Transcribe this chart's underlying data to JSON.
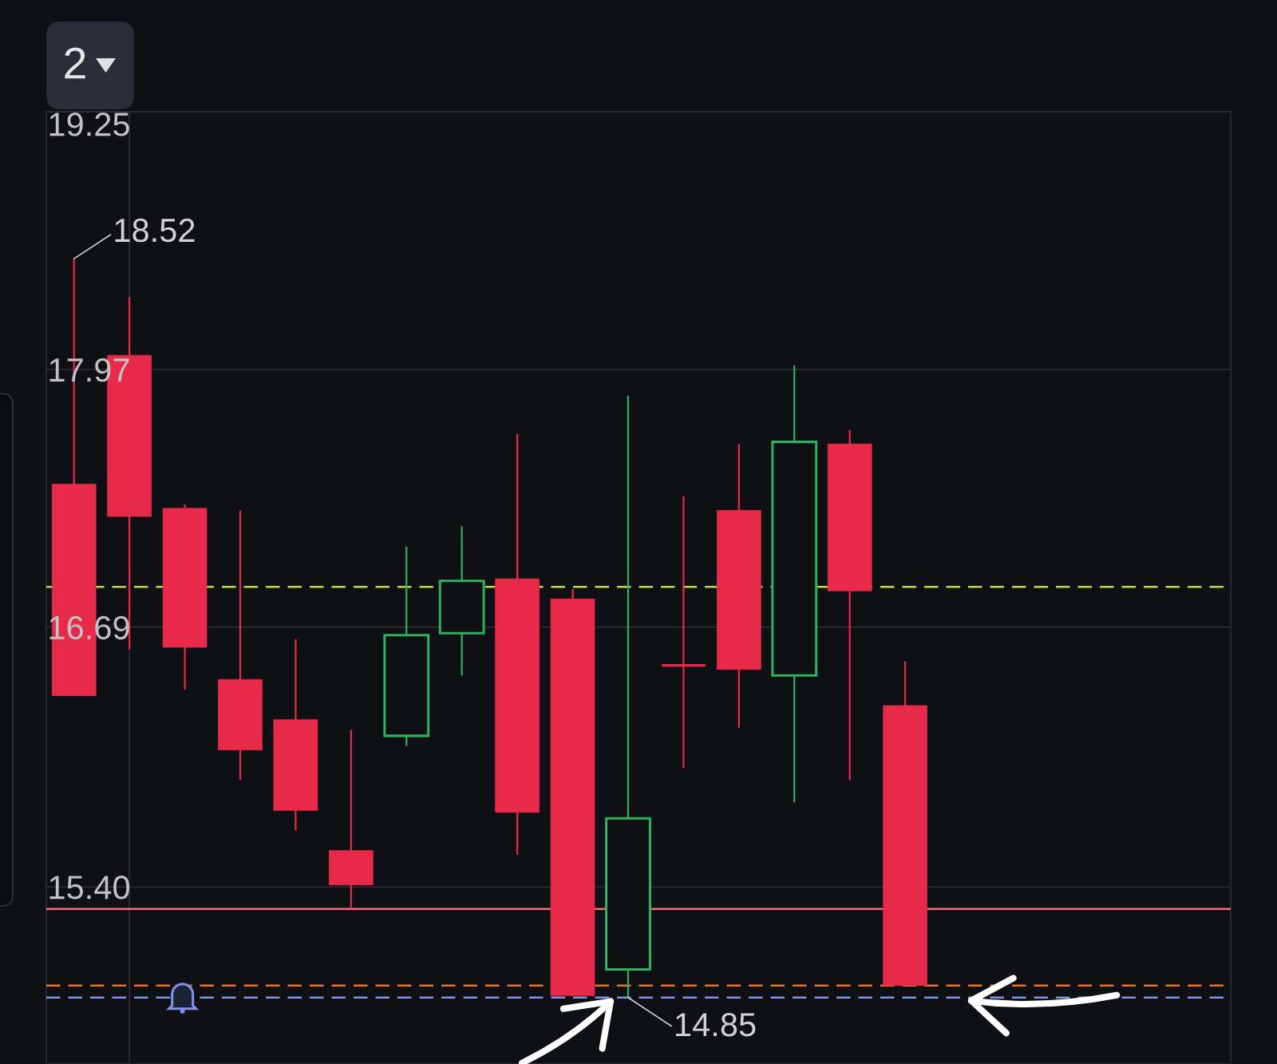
{
  "chart_data": {
    "type": "candlestick",
    "categories": [
      null,
      null,
      null,
      null,
      null,
      null,
      null,
      null,
      null,
      null,
      null,
      null,
      null,
      null,
      null,
      null
    ],
    "ohlc": [
      [
        17.4,
        18.52,
        16.35,
        16.35
      ],
      [
        18.04,
        18.33,
        16.58,
        17.24
      ],
      [
        17.28,
        17.3,
        16.38,
        16.59
      ],
      [
        16.43,
        17.27,
        15.93,
        16.08
      ],
      [
        16.23,
        16.63,
        15.68,
        15.78
      ],
      [
        15.58,
        16.18,
        15.29,
        15.41
      ],
      [
        16.15,
        17.09,
        16.1,
        16.65
      ],
      [
        16.66,
        17.19,
        16.45,
        16.92
      ],
      [
        16.93,
        17.65,
        15.56,
        15.77
      ],
      [
        16.83,
        16.88,
        14.86,
        14.86
      ],
      [
        14.99,
        17.84,
        14.85,
        15.74
      ],
      [
        16.5,
        17.34,
        15.99,
        16.5
      ],
      [
        17.27,
        17.6,
        16.19,
        16.48
      ],
      [
        16.45,
        17.99,
        15.82,
        17.61
      ],
      [
        17.6,
        17.67,
        15.93,
        16.87
      ],
      [
        16.3,
        16.52,
        14.91,
        14.91
      ]
    ],
    "colors": [
      "#e72a49",
      "#e72a49",
      "#e72a49",
      "#e72a49",
      "#e72a49",
      "#e72a49",
      "#33ad5f",
      "#33ad5f",
      "#e72a49",
      "#e72a49",
      "#33ad5f",
      "#e72a49",
      "#e72a49",
      "#33ad5f",
      "#e72a49",
      "#e72a49"
    ],
    "ylim": [
      14.52,
      19.25
    ],
    "yticks": [
      19.25,
      17.97,
      16.69,
      {
        "value": 15.4,
        "label": "15.40"
      }
    ],
    "grid": "y",
    "tick_labels": "y",
    "ref_lines": [
      {
        "axis": "y",
        "value": 16.89,
        "color": "#c3d44a",
        "line_style": "dashed"
      },
      {
        "axis": "y",
        "value": 15.29,
        "color": "#f26d7f",
        "line_style": "solid"
      },
      {
        "axis": "y",
        "value": 14.91,
        "color": "#e8742e",
        "line_style": "dashed"
      },
      {
        "axis": "y",
        "value": 14.85,
        "color": "#7f93ea",
        "line_style": "dashed"
      }
    ],
    "annotations": [
      "2",
      "18.52",
      {
        "text": "14.85",
        "y": 14.85
      }
    ]
  }
}
